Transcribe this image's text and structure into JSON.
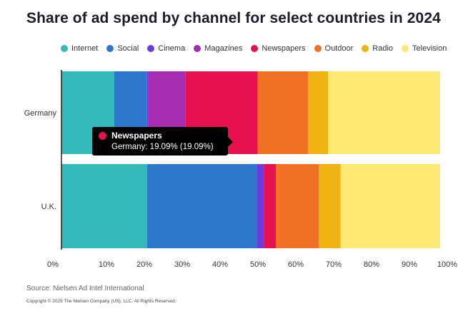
{
  "title": "Share of ad spend by channel for select countries in 2024",
  "colors": {
    "Internet": "#35b8b8",
    "Social": "#2e78cc",
    "Cinema": "#6c3be0",
    "Magazines": "#a52bb0",
    "Newspapers": "#e8114f",
    "Outdoor": "#f07024",
    "Radio": "#f1b312",
    "Television": "#fde871"
  },
  "chart_data": {
    "type": "bar",
    "orientation": "horizontal",
    "stacked": true,
    "title": "Share of ad spend by channel for select countries in 2024",
    "categories": [
      "Germany",
      "U.K."
    ],
    "series": [
      {
        "name": "Internet",
        "values": [
          13.9,
          22.6
        ]
      },
      {
        "name": "Social",
        "values": [
          8.7,
          29.1
        ]
      },
      {
        "name": "Cinema",
        "values": [
          0.3,
          1.6
        ]
      },
      {
        "name": "Magazines",
        "values": [
          9.8,
          0.2
        ]
      },
      {
        "name": "Newspapers",
        "values": [
          19.09,
          3.1
        ]
      },
      {
        "name": "Outdoor",
        "values": [
          13.3,
          11.4
        ]
      },
      {
        "name": "Radio",
        "values": [
          5.3,
          5.7
        ]
      },
      {
        "name": "Television",
        "values": [
          29.61,
          26.3
        ]
      }
    ],
    "xlim": [
      0,
      100
    ],
    "xticks": [
      "0%",
      "10%",
      "20%",
      "30%",
      "40%",
      "50%",
      "60%",
      "70%",
      "80%",
      "90%",
      "100%"
    ],
    "legend_position": "top"
  },
  "tooltip": {
    "series": "Newspapers",
    "text": "Germany: 19.09% (19.09%)"
  },
  "source": "Source: Nielsen Ad Intel International",
  "copyright": "Copyright © 2025 The Nielsen Company (US), LLC. All Rights Reserved."
}
